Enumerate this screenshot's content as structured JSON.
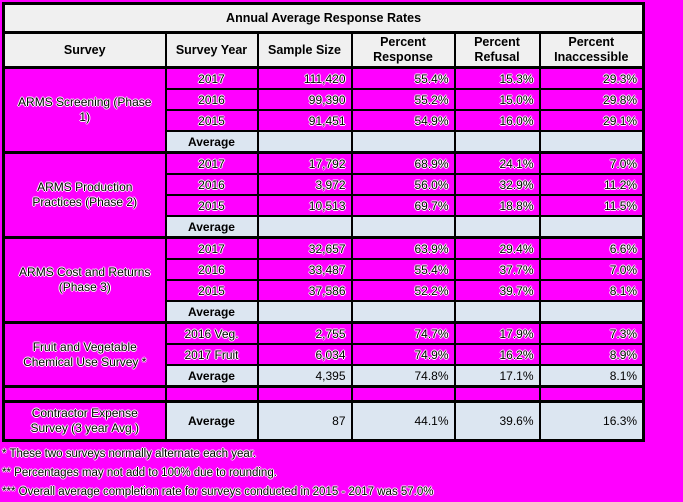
{
  "colors": {
    "page_background": "#FF00FF",
    "header_background": "#F0F0F0",
    "average_row_background": "#DCE6F1",
    "border": "#000000"
  },
  "chart_data": {
    "type": "table",
    "title": "Annual Average Response Rates",
    "columns": [
      "Survey",
      "Survey Year",
      "Sample Size",
      "Percent Response",
      "Percent Refusal",
      "Percent Inaccessible"
    ],
    "groups": [
      {
        "survey": "ARMS Screening (Phase 1)",
        "rows": [
          {
            "year": "2017",
            "sample": "111,420",
            "response": "55.4%",
            "refusal": "15.3%",
            "inaccessible": "29.3%"
          },
          {
            "year": "2016",
            "sample": "99,390",
            "response": "55.2%",
            "refusal": "15.0%",
            "inaccessible": "29.8%"
          },
          {
            "year": "2015",
            "sample": "91,451",
            "response": "54.9%",
            "refusal": "16.0%",
            "inaccessible": "29.1%"
          }
        ],
        "average": {
          "label": "Average",
          "sample": "",
          "response": "",
          "refusal": "",
          "inaccessible": ""
        }
      },
      {
        "survey": "ARMS Production Practices (Phase 2)",
        "rows": [
          {
            "year": "2017",
            "sample": "17,792",
            "response": "68.9%",
            "refusal": "24.1%",
            "inaccessible": "7.0%"
          },
          {
            "year": "2016",
            "sample": "3,972",
            "response": "56.0%",
            "refusal": "32.9%",
            "inaccessible": "11.2%"
          },
          {
            "year": "2015",
            "sample": "10,513",
            "response": "69.7%",
            "refusal": "18.8%",
            "inaccessible": "11.5%"
          }
        ],
        "average": {
          "label": "Average",
          "sample": "",
          "response": "",
          "refusal": "",
          "inaccessible": ""
        }
      },
      {
        "survey": "ARMS Cost and Returns (Phase 3)",
        "rows": [
          {
            "year": "2017",
            "sample": "32,657",
            "response": "63.9%",
            "refusal": "29.4%",
            "inaccessible": "6.6%"
          },
          {
            "year": "2016",
            "sample": "33,487",
            "response": "55.4%",
            "refusal": "37.7%",
            "inaccessible": "7.0%"
          },
          {
            "year": "2015",
            "sample": "37,586",
            "response": "52.2%",
            "refusal": "39.7%",
            "inaccessible": "8.1%"
          }
        ],
        "average": {
          "label": "Average",
          "sample": "",
          "response": "",
          "refusal": "",
          "inaccessible": ""
        }
      },
      {
        "survey": "Fruit and Vegetable Chemical Use Survey *",
        "rows": [
          {
            "year": "2016 Veg.",
            "sample": "2,755",
            "response": "74.7%",
            "refusal": "17.9%",
            "inaccessible": "7.3%"
          },
          {
            "year": "2017 Fruit",
            "sample": "6,034",
            "response": "74.9%",
            "refusal": "16.2%",
            "inaccessible": "8.9%"
          }
        ],
        "average": {
          "label": "Average",
          "sample": "4,395",
          "response": "74.8%",
          "refusal": "17.1%",
          "inaccessible": "8.1%"
        }
      }
    ],
    "contractor_row": {
      "survey": "Contractor Expense Survey (3 year Avg.)",
      "label": "Average",
      "sample": "87",
      "response": "44.1%",
      "refusal": "39.6%",
      "inaccessible": "16.3%"
    },
    "footnotes": [
      "* These two surveys normally alternate each year.",
      "** Percentages may not add to 100% due to rounding.",
      "*** Overall average completion rate for surveys conducted in 2015 - 2017 was 57.0%"
    ]
  }
}
